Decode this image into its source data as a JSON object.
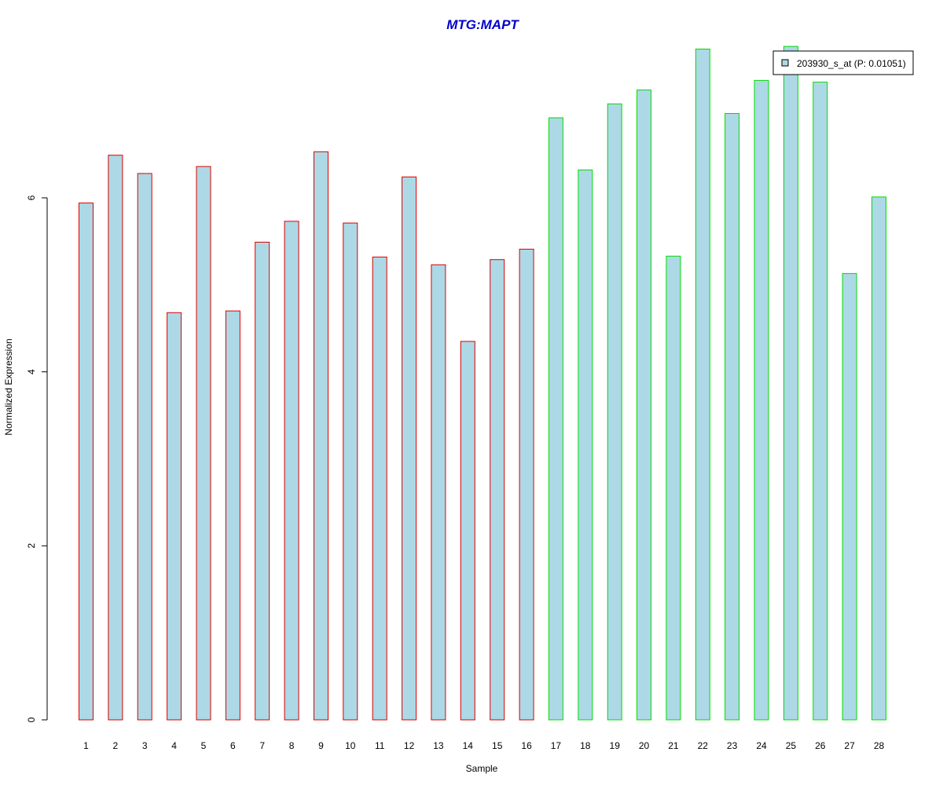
{
  "chart_data": {
    "type": "bar",
    "title": "MTG:MAPT",
    "xlabel": "Sample",
    "ylabel": "Normalized Expression",
    "categories": [
      "1",
      "2",
      "3",
      "4",
      "5",
      "6",
      "7",
      "8",
      "9",
      "10",
      "11",
      "12",
      "13",
      "14",
      "15",
      "16",
      "17",
      "18",
      "19",
      "20",
      "21",
      "22",
      "23",
      "24",
      "25",
      "26",
      "27",
      "28"
    ],
    "series": [
      {
        "name": "203930_s_at (P: 0.01051)",
        "values": [
          5.94,
          6.49,
          6.28,
          4.68,
          6.36,
          4.7,
          5.49,
          5.73,
          6.53,
          5.71,
          5.32,
          6.24,
          5.23,
          4.35,
          5.29,
          5.41,
          6.92,
          6.32,
          7.08,
          7.24,
          5.33,
          7.71,
          6.97,
          7.35,
          7.74,
          7.33,
          5.13,
          6.01
        ]
      }
    ],
    "group_border_colors": [
      "#dd0000",
      "#dd0000",
      "#dd0000",
      "#dd0000",
      "#dd0000",
      "#dd0000",
      "#dd0000",
      "#dd0000",
      "#dd0000",
      "#dd0000",
      "#dd0000",
      "#dd0000",
      "#dd0000",
      "#dd0000",
      "#dd0000",
      "#dd0000",
      "#00dd00",
      "#00dd00",
      "#00dd00",
      "#00dd00",
      "#00dd00",
      "#00dd00",
      "#00dd00",
      "#00dd00",
      "#00dd00",
      "#00dd00",
      "#00dd00",
      "#00dd00"
    ],
    "bar_fill": "#add8e6",
    "title_color": "#0000cc",
    "yticks": [
      0,
      2,
      4,
      6
    ],
    "ylim": [
      0,
      7.74
    ],
    "grid": false,
    "legend_position": "top-right"
  }
}
